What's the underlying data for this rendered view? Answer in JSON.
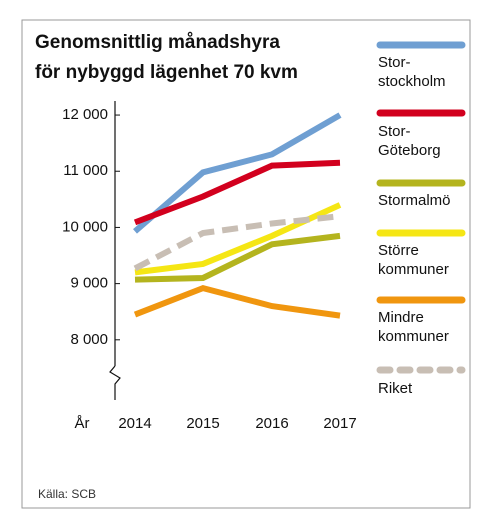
{
  "chart_data": {
    "type": "line",
    "title": "Genomsnittlig månadshyra\nför nybyggd lägenhet 70 kvm",
    "x_label": "År",
    "source": "Källa: SCB",
    "categories": [
      "2014",
      "2015",
      "2016",
      "2017"
    ],
    "ylim": [
      7000,
      12250
    ],
    "yticks": [
      {
        "value": 8000,
        "label": "8 000"
      },
      {
        "value": 9000,
        "label": "9 000"
      },
      {
        "value": 10000,
        "label": "10 000"
      },
      {
        "value": 11000,
        "label": "11 000"
      },
      {
        "value": 12000,
        "label": "12 000"
      }
    ],
    "legend": "right",
    "series": [
      {
        "name": "Stor-\nstockholm",
        "color": "#6f9fd2",
        "values": [
          9930,
          10980,
          11300,
          12000
        ]
      },
      {
        "name": "Stor-\nGöteborg",
        "color": "#d2001e",
        "values": [
          10090,
          10550,
          11100,
          11150
        ]
      },
      {
        "name": "Stormalmö",
        "color": "#b4b41e",
        "values": [
          9070,
          9100,
          9700,
          9850
        ]
      },
      {
        "name": "Större\nkommuner",
        "color": "#f5e614",
        "values": [
          9200,
          9350,
          9850,
          10400
        ]
      },
      {
        "name": "Mindre\nkommuner",
        "color": "#f0960f",
        "values": [
          8450,
          8920,
          8600,
          8430
        ]
      },
      {
        "name": "Riket",
        "color": "#c8beb4",
        "dashed": true,
        "values": [
          9270,
          9900,
          10070,
          10200
        ]
      }
    ]
  }
}
